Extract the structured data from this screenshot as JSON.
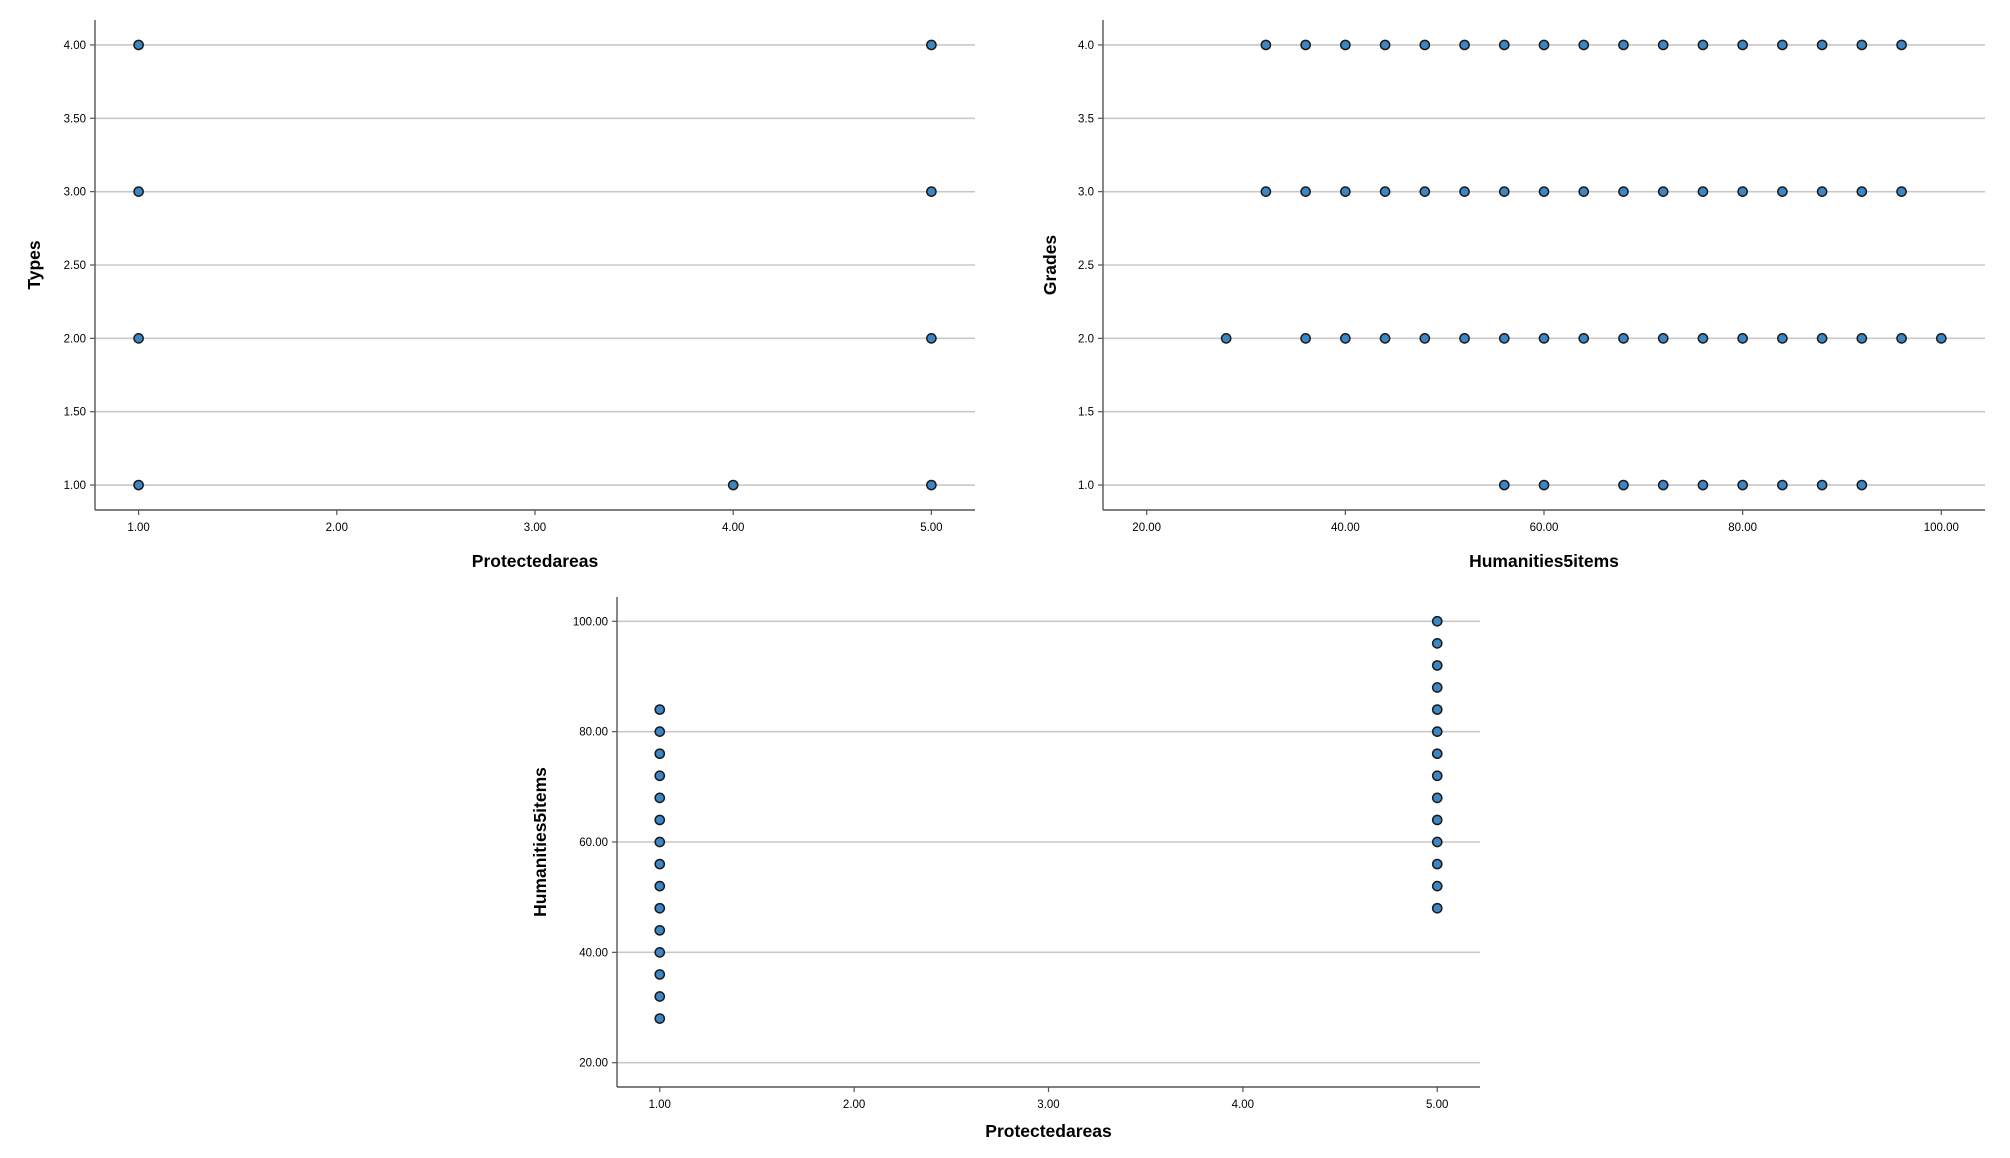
{
  "colors": {
    "marker_fill": "#3d86c6",
    "gridline": "#c8c8c8",
    "axis": "#555555"
  },
  "chart_data": [
    {
      "type": "scatter",
      "xlabel": "Protectedareas",
      "ylabel": "Types",
      "xlim": [
        0.78,
        5.22
      ],
      "ylim": [
        0.83,
        4.17
      ],
      "xticks": [
        1,
        2,
        3,
        4,
        5
      ],
      "xtick_labels": [
        "1.00",
        "2.00",
        "3.00",
        "4.00",
        "5.00"
      ],
      "yticks": [
        1,
        1.5,
        2,
        2.5,
        3,
        3.5,
        4
      ],
      "ytick_labels": [
        "1.00",
        "1.50",
        "2.00",
        "2.50",
        "3.00",
        "3.50",
        "4.00"
      ],
      "grid": "horizontal",
      "points": [
        [
          1,
          4
        ],
        [
          1,
          3
        ],
        [
          1,
          2
        ],
        [
          1,
          1
        ],
        [
          4,
          1
        ],
        [
          5,
          4
        ],
        [
          5,
          3
        ],
        [
          5,
          2
        ],
        [
          5,
          1
        ]
      ]
    },
    {
      "type": "scatter",
      "xlabel": "Humanities5items",
      "ylabel": "Grades",
      "xlim": [
        15.6,
        104.4
      ],
      "ylim": [
        0.83,
        4.17
      ],
      "xticks": [
        20,
        40,
        60,
        80,
        100
      ],
      "xtick_labels": [
        "20.00",
        "40.00",
        "60.00",
        "80.00",
        "100.00"
      ],
      "yticks": [
        1,
        1.5,
        2,
        2.5,
        3,
        3.5,
        4
      ],
      "ytick_labels": [
        "1.0",
        "1.5",
        "2.0",
        "2.5",
        "3.0",
        "3.5",
        "4.0"
      ],
      "grid": "horizontal",
      "points": [
        [
          32,
          4
        ],
        [
          36,
          4
        ],
        [
          40,
          4
        ],
        [
          44,
          4
        ],
        [
          48,
          4
        ],
        [
          52,
          4
        ],
        [
          56,
          4
        ],
        [
          60,
          4
        ],
        [
          64,
          4
        ],
        [
          68,
          4
        ],
        [
          72,
          4
        ],
        [
          76,
          4
        ],
        [
          80,
          4
        ],
        [
          84,
          4
        ],
        [
          88,
          4
        ],
        [
          92,
          4
        ],
        [
          96,
          4
        ],
        [
          32,
          3
        ],
        [
          36,
          3
        ],
        [
          40,
          3
        ],
        [
          44,
          3
        ],
        [
          48,
          3
        ],
        [
          52,
          3
        ],
        [
          56,
          3
        ],
        [
          60,
          3
        ],
        [
          64,
          3
        ],
        [
          68,
          3
        ],
        [
          72,
          3
        ],
        [
          76,
          3
        ],
        [
          80,
          3
        ],
        [
          84,
          3
        ],
        [
          88,
          3
        ],
        [
          92,
          3
        ],
        [
          96,
          3
        ],
        [
          28,
          2
        ],
        [
          36,
          2
        ],
        [
          40,
          2
        ],
        [
          44,
          2
        ],
        [
          48,
          2
        ],
        [
          52,
          2
        ],
        [
          56,
          2
        ],
        [
          60,
          2
        ],
        [
          64,
          2
        ],
        [
          68,
          2
        ],
        [
          72,
          2
        ],
        [
          76,
          2
        ],
        [
          80,
          2
        ],
        [
          84,
          2
        ],
        [
          88,
          2
        ],
        [
          92,
          2
        ],
        [
          96,
          2
        ],
        [
          100,
          2
        ],
        [
          56,
          1
        ],
        [
          60,
          1
        ],
        [
          68,
          1
        ],
        [
          72,
          1
        ],
        [
          76,
          1
        ],
        [
          80,
          1
        ],
        [
          84,
          1
        ],
        [
          88,
          1
        ],
        [
          92,
          1
        ]
      ]
    },
    {
      "type": "scatter",
      "xlabel": "Protectedareas",
      "ylabel": "Humanities5items",
      "xlim": [
        0.78,
        5.22
      ],
      "ylim": [
        15.6,
        104.4
      ],
      "xticks": [
        1,
        2,
        3,
        4,
        5
      ],
      "xtick_labels": [
        "1.00",
        "2.00",
        "3.00",
        "4.00",
        "5.00"
      ],
      "yticks": [
        20,
        40,
        60,
        80,
        100
      ],
      "ytick_labels": [
        "20.00",
        "40.00",
        "60.00",
        "80.00",
        "100.00"
      ],
      "grid": "horizontal",
      "points": [
        [
          1,
          28
        ],
        [
          1,
          32
        ],
        [
          1,
          36
        ],
        [
          1,
          40
        ],
        [
          1,
          44
        ],
        [
          1,
          48
        ],
        [
          1,
          52
        ],
        [
          1,
          56
        ],
        [
          1,
          60
        ],
        [
          1,
          64
        ],
        [
          1,
          68
        ],
        [
          1,
          72
        ],
        [
          1,
          76
        ],
        [
          1,
          80
        ],
        [
          1,
          84
        ],
        [
          5,
          48
        ],
        [
          5,
          52
        ],
        [
          5,
          56
        ],
        [
          5,
          60
        ],
        [
          5,
          64
        ],
        [
          5,
          68
        ],
        [
          5,
          72
        ],
        [
          5,
          76
        ],
        [
          5,
          80
        ],
        [
          5,
          84
        ],
        [
          5,
          88
        ],
        [
          5,
          92
        ],
        [
          5,
          96
        ],
        [
          5,
          100
        ]
      ]
    }
  ]
}
